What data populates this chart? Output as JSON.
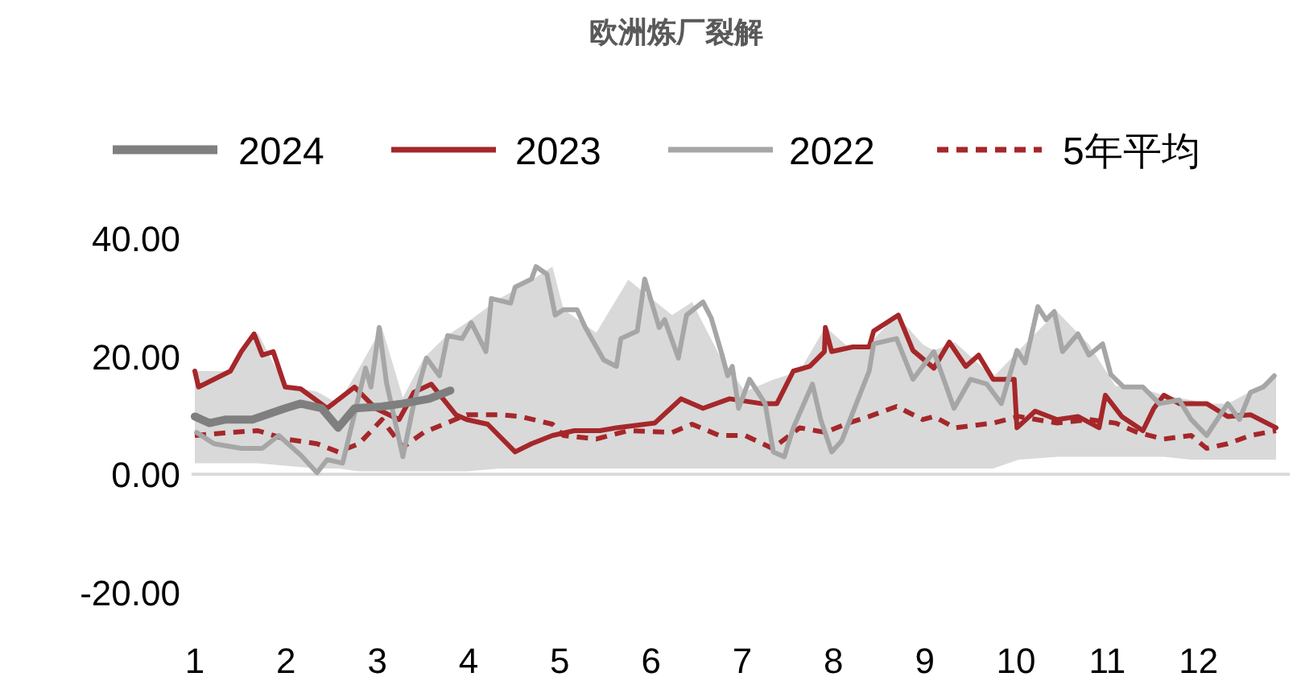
{
  "chart_data": {
    "type": "line",
    "title": "欧洲炼厂裂解",
    "legend": "top",
    "marker": "none",
    "xlim": [
      1,
      13
    ],
    "xticks": [
      1,
      2,
      3,
      4,
      5,
      6,
      7,
      8,
      9,
      10,
      11,
      12
    ],
    "ylim": [
      -20,
      40
    ],
    "yticks": [
      {
        "value": -20,
        "label": "-20.00"
      },
      {
        "value": 0,
        "label": "0.00"
      },
      {
        "value": 20,
        "label": "20.00"
      },
      {
        "value": 40,
        "label": "40.00"
      }
    ],
    "series": [
      {
        "name": "2024",
        "color": "#7f7f7f",
        "line_style": "solid",
        "x": [
          1.0,
          1.16,
          1.34,
          1.63,
          1.99,
          2.16,
          2.39,
          2.57,
          2.75,
          3.05,
          3.28,
          3.57,
          3.8
        ],
        "values": [
          9.8,
          8.7,
          9.3,
          9.3,
          11.2,
          12.0,
          11.2,
          7.9,
          11.2,
          11.5,
          12.0,
          12.8,
          14.2
        ]
      },
      {
        "name": "2023",
        "color": "#a5272a",
        "line_style": "solid",
        "x": [
          1.0,
          1.04,
          1.39,
          1.51,
          1.65,
          1.74,
          1.86,
          1.99,
          2.16,
          2.45,
          2.75,
          2.98,
          3.24,
          3.4,
          3.59,
          3.86,
          3.98,
          4.21,
          4.51,
          4.69,
          4.92,
          5.16,
          5.44,
          5.62,
          6.04,
          6.33,
          6.57,
          6.86,
          7.21,
          7.38,
          7.56,
          7.74,
          7.9,
          7.91,
          7.98,
          8.21,
          8.39,
          8.44,
          8.71,
          8.87,
          9.1,
          9.27,
          9.45,
          9.59,
          9.75,
          9.98,
          10.01,
          10.21,
          10.45,
          10.68,
          10.91,
          10.98,
          11.16,
          11.39,
          11.51,
          11.62,
          11.79,
          12.09,
          12.32,
          12.57,
          12.85
        ],
        "values": [
          17.5,
          14.8,
          17.5,
          20.8,
          23.8,
          20.2,
          20.8,
          14.8,
          14.5,
          11.2,
          14.8,
          11.2,
          9.3,
          13.9,
          15.3,
          10.1,
          9.3,
          8.5,
          3.8,
          5.2,
          6.6,
          7.4,
          7.4,
          7.9,
          8.7,
          12.8,
          11.2,
          12.8,
          12.0,
          12.0,
          17.5,
          18.3,
          20.8,
          24.9,
          20.8,
          21.6,
          21.6,
          24.3,
          27.0,
          21.0,
          18.0,
          22.4,
          18.3,
          20.2,
          16.1,
          16.1,
          7.9,
          10.7,
          9.3,
          9.8,
          7.9,
          13.4,
          9.8,
          7.4,
          11.2,
          13.4,
          12.0,
          12.0,
          9.8,
          10.1,
          7.9
        ]
      },
      {
        "name": "2022",
        "color": "#a6a6a6",
        "line_style": "solid",
        "x": [
          1.02,
          1.21,
          1.51,
          1.74,
          1.92,
          2.16,
          2.34,
          2.45,
          2.62,
          2.87,
          2.93,
          3.02,
          3.1,
          3.28,
          3.4,
          3.54,
          3.68,
          3.77,
          3.93,
          4.03,
          4.19,
          4.25,
          4.46,
          4.51,
          4.69,
          4.74,
          4.86,
          4.95,
          5.04,
          5.19,
          5.28,
          5.48,
          5.62,
          5.67,
          5.85,
          5.93,
          6.02,
          6.09,
          6.15,
          6.3,
          6.39,
          6.57,
          6.66,
          6.78,
          6.84,
          6.89,
          6.96,
          7.08,
          7.25,
          7.34,
          7.46,
          7.56,
          7.77,
          7.86,
          7.98,
          8.09,
          8.27,
          8.39,
          8.44,
          8.69,
          8.87,
          9.1,
          9.32,
          9.5,
          9.68,
          9.84,
          10.01,
          10.1,
          10.24,
          10.33,
          10.42,
          10.51,
          10.68,
          10.8,
          10.95,
          11.04,
          11.18,
          11.39,
          11.57,
          11.79,
          11.92,
          12.09,
          12.32,
          12.45,
          12.57,
          12.71,
          12.83
        ],
        "values": [
          7.1,
          5.2,
          4.4,
          4.4,
          6.6,
          3.3,
          0.3,
          2.5,
          1.9,
          18.0,
          14.8,
          24.9,
          15.6,
          3.0,
          12.0,
          19.7,
          16.7,
          23.5,
          23.0,
          25.7,
          20.8,
          29.8,
          29.0,
          31.7,
          33.1,
          35.2,
          33.9,
          27.0,
          27.9,
          27.9,
          24.9,
          19.4,
          18.3,
          23.0,
          24.3,
          33.1,
          28.4,
          24.9,
          26.2,
          19.7,
          27.0,
          29.2,
          26.5,
          20.2,
          16.7,
          18.3,
          11.2,
          16.1,
          12.0,
          3.8,
          3.0,
          7.9,
          15.3,
          9.3,
          3.8,
          5.7,
          12.8,
          17.5,
          22.1,
          23.0,
          16.1,
          20.8,
          11.2,
          16.1,
          15.3,
          12.0,
          21.0,
          18.9,
          28.4,
          26.2,
          27.6,
          20.8,
          23.8,
          20.2,
          22.1,
          16.9,
          14.8,
          14.8,
          12.0,
          12.6,
          9.3,
          6.6,
          12.0,
          9.3,
          13.9,
          14.8,
          16.7
        ]
      },
      {
        "name": "5年平均",
        "color": "#a5272a",
        "line_style": "dashed",
        "x": [
          1.0,
          1.39,
          1.69,
          1.99,
          2.34,
          2.57,
          2.8,
          3.05,
          3.28,
          3.51,
          3.76,
          3.98,
          4.34,
          4.57,
          4.92,
          5.04,
          5.4,
          5.75,
          6.23,
          6.45,
          6.75,
          7.03,
          7.33,
          7.63,
          7.91,
          8.16,
          8.39,
          8.69,
          8.98,
          9.1,
          9.33,
          9.75,
          10.03,
          10.45,
          10.8,
          11.09,
          11.33,
          11.62,
          11.92,
          12.09,
          12.32,
          12.57,
          12.85
        ],
        "values": [
          6.6,
          7.1,
          7.4,
          6.0,
          5.2,
          3.8,
          5.2,
          9.3,
          4.6,
          7.1,
          8.7,
          10.1,
          10.1,
          9.8,
          8.5,
          6.6,
          6.0,
          7.4,
          7.1,
          8.5,
          6.6,
          6.6,
          4.4,
          7.9,
          7.1,
          8.7,
          9.8,
          11.5,
          9.3,
          9.8,
          7.9,
          8.7,
          9.8,
          8.7,
          9.3,
          8.7,
          7.1,
          6.0,
          6.6,
          4.4,
          5.2,
          6.6,
          7.4
        ],
        "lower": [
          1.9,
          1.9,
          1.9,
          1.5,
          1.0,
          1.0,
          0.5,
          0.5,
          0.5,
          0.5,
          0.5,
          0.5,
          1.0,
          1.0,
          1.0,
          1.0,
          1.0,
          1.0,
          1.0,
          1.0,
          1.0,
          1.0,
          1.0,
          1.0,
          1.0,
          1.0,
          1.0,
          1.0,
          1.0,
          1.0,
          1.0,
          1.0,
          2.5,
          3.0,
          3.0,
          3.0,
          3.0,
          3.0,
          2.5,
          2.5,
          2.5,
          2.5,
          2.5
        ],
        "upper": [
          17.5,
          17.5,
          24.0,
          15.0,
          14.0,
          12.0,
          18.0,
          24.9,
          13.0,
          19.7,
          23.5,
          25.7,
          29.8,
          31.7,
          35.2,
          28.0,
          24.0,
          33.0,
          27.0,
          29.2,
          20.2,
          14.0,
          16.0,
          17.5,
          25.0,
          21.6,
          22.1,
          27.0,
          22.0,
          21.0,
          22.4,
          16.5,
          21.0,
          27.6,
          22.0,
          15.0,
          14.8,
          13.4,
          12.6,
          12.0,
          12.0,
          14.0,
          16.7
        ]
      }
    ]
  }
}
